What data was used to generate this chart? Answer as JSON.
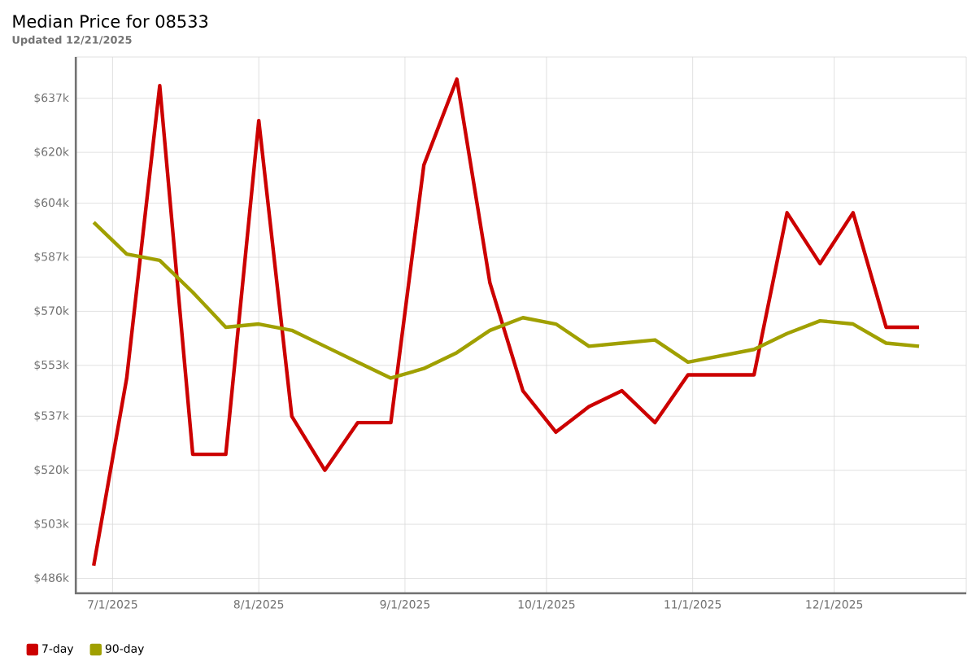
{
  "chart_data": {
    "type": "line",
    "title": "Median Price for 08533",
    "subtitle": "Updated 12/21/2025",
    "x": [
      "2025-06-27",
      "2025-07-04",
      "2025-07-11",
      "2025-07-18",
      "2025-07-25",
      "2025-08-01",
      "2025-08-08",
      "2025-08-15",
      "2025-08-22",
      "2025-08-29",
      "2025-09-05",
      "2025-09-12",
      "2025-09-19",
      "2025-09-26",
      "2025-10-03",
      "2025-10-10",
      "2025-10-17",
      "2025-10-24",
      "2025-10-31",
      "2025-11-07",
      "2025-11-14",
      "2025-11-21",
      "2025-11-28",
      "2025-12-05",
      "2025-12-12",
      "2025-12-19"
    ],
    "series": [
      {
        "name": "7-day",
        "color": "#cc0000",
        "values": [
          490,
          549,
          641,
          525,
          525,
          630,
          537,
          520,
          535,
          535,
          616,
          643,
          579,
          545,
          532,
          540,
          545,
          535,
          550,
          550,
          550,
          601,
          585,
          601,
          565,
          565
        ]
      },
      {
        "name": "90-day",
        "color": "#a0a000",
        "values": [
          598,
          588,
          586,
          576,
          565,
          566,
          564,
          559,
          554,
          549,
          552,
          557,
          564,
          568,
          566,
          559,
          560,
          561,
          554,
          556,
          558,
          563,
          567,
          566,
          560,
          559
        ]
      }
    ],
    "xlim": [
      "2025-06-23",
      "2025-12-29"
    ],
    "xticks": [
      {
        "value": "2025-07-01",
        "label": "7/1/2025"
      },
      {
        "value": "2025-08-01",
        "label": "8/1/2025"
      },
      {
        "value": "2025-09-01",
        "label": "9/1/2025"
      },
      {
        "value": "2025-10-01",
        "label": "10/1/2025"
      },
      {
        "value": "2025-11-01",
        "label": "11/1/2025"
      },
      {
        "value": "2025-12-01",
        "label": "12/1/2025"
      }
    ],
    "ylim": [
      481,
      650
    ],
    "yticks": [
      {
        "value": 486,
        "label": "$486k"
      },
      {
        "value": 503,
        "label": "$503k"
      },
      {
        "value": 520,
        "label": "$520k"
      },
      {
        "value": 537,
        "label": "$537k"
      },
      {
        "value": 553,
        "label": "$553k"
      },
      {
        "value": 570,
        "label": "$570k"
      },
      {
        "value": 587,
        "label": "$587k"
      },
      {
        "value": 604,
        "label": "$604k"
      },
      {
        "value": 620,
        "label": "$620k"
      },
      {
        "value": 637,
        "label": "$637k"
      }
    ],
    "grid": true,
    "legend": "bottom left",
    "marker": "none",
    "line_style": "solid"
  }
}
